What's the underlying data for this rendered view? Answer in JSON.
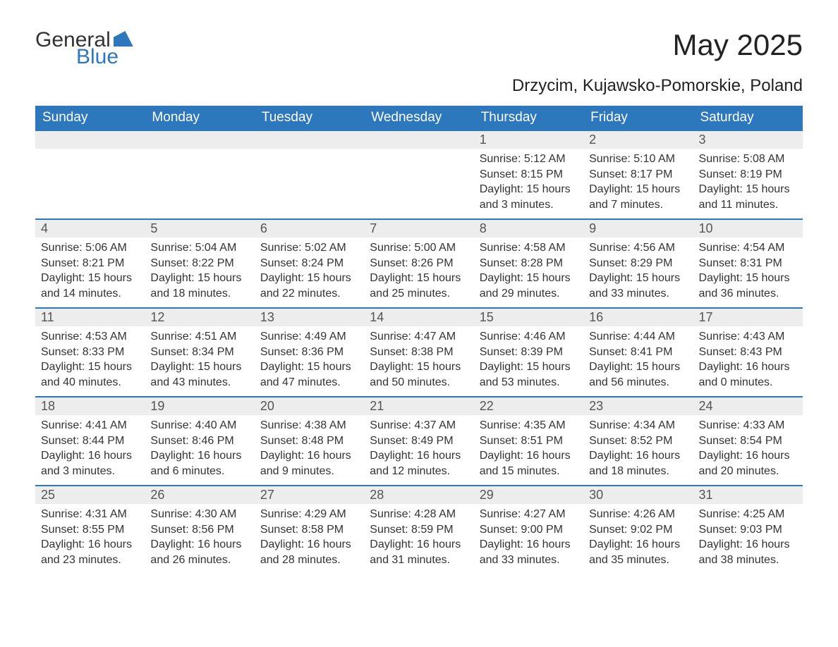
{
  "brand": {
    "general": "General",
    "blue": "Blue"
  },
  "title": "May 2025",
  "location": "Drzycim, Kujawsko-Pomorskie, Poland",
  "colors": {
    "accent": "#2d78bd",
    "header_text": "#ffffff",
    "daynum_bg": "#ededed",
    "text": "#333333",
    "background": "#ffffff"
  },
  "weekdays": [
    "Sunday",
    "Monday",
    "Tuesday",
    "Wednesday",
    "Thursday",
    "Friday",
    "Saturday"
  ],
  "weeks": [
    [
      null,
      null,
      null,
      null,
      {
        "n": "1",
        "sr": "Sunrise: 5:12 AM",
        "ss": "Sunset: 8:15 PM",
        "dl": "Daylight: 15 hours and 3 minutes."
      },
      {
        "n": "2",
        "sr": "Sunrise: 5:10 AM",
        "ss": "Sunset: 8:17 PM",
        "dl": "Daylight: 15 hours and 7 minutes."
      },
      {
        "n": "3",
        "sr": "Sunrise: 5:08 AM",
        "ss": "Sunset: 8:19 PM",
        "dl": "Daylight: 15 hours and 11 minutes."
      }
    ],
    [
      {
        "n": "4",
        "sr": "Sunrise: 5:06 AM",
        "ss": "Sunset: 8:21 PM",
        "dl": "Daylight: 15 hours and 14 minutes."
      },
      {
        "n": "5",
        "sr": "Sunrise: 5:04 AM",
        "ss": "Sunset: 8:22 PM",
        "dl": "Daylight: 15 hours and 18 minutes."
      },
      {
        "n": "6",
        "sr": "Sunrise: 5:02 AM",
        "ss": "Sunset: 8:24 PM",
        "dl": "Daylight: 15 hours and 22 minutes."
      },
      {
        "n": "7",
        "sr": "Sunrise: 5:00 AM",
        "ss": "Sunset: 8:26 PM",
        "dl": "Daylight: 15 hours and 25 minutes."
      },
      {
        "n": "8",
        "sr": "Sunrise: 4:58 AM",
        "ss": "Sunset: 8:28 PM",
        "dl": "Daylight: 15 hours and 29 minutes."
      },
      {
        "n": "9",
        "sr": "Sunrise: 4:56 AM",
        "ss": "Sunset: 8:29 PM",
        "dl": "Daylight: 15 hours and 33 minutes."
      },
      {
        "n": "10",
        "sr": "Sunrise: 4:54 AM",
        "ss": "Sunset: 8:31 PM",
        "dl": "Daylight: 15 hours and 36 minutes."
      }
    ],
    [
      {
        "n": "11",
        "sr": "Sunrise: 4:53 AM",
        "ss": "Sunset: 8:33 PM",
        "dl": "Daylight: 15 hours and 40 minutes."
      },
      {
        "n": "12",
        "sr": "Sunrise: 4:51 AM",
        "ss": "Sunset: 8:34 PM",
        "dl": "Daylight: 15 hours and 43 minutes."
      },
      {
        "n": "13",
        "sr": "Sunrise: 4:49 AM",
        "ss": "Sunset: 8:36 PM",
        "dl": "Daylight: 15 hours and 47 minutes."
      },
      {
        "n": "14",
        "sr": "Sunrise: 4:47 AM",
        "ss": "Sunset: 8:38 PM",
        "dl": "Daylight: 15 hours and 50 minutes."
      },
      {
        "n": "15",
        "sr": "Sunrise: 4:46 AM",
        "ss": "Sunset: 8:39 PM",
        "dl": "Daylight: 15 hours and 53 minutes."
      },
      {
        "n": "16",
        "sr": "Sunrise: 4:44 AM",
        "ss": "Sunset: 8:41 PM",
        "dl": "Daylight: 15 hours and 56 minutes."
      },
      {
        "n": "17",
        "sr": "Sunrise: 4:43 AM",
        "ss": "Sunset: 8:43 PM",
        "dl": "Daylight: 16 hours and 0 minutes."
      }
    ],
    [
      {
        "n": "18",
        "sr": "Sunrise: 4:41 AM",
        "ss": "Sunset: 8:44 PM",
        "dl": "Daylight: 16 hours and 3 minutes."
      },
      {
        "n": "19",
        "sr": "Sunrise: 4:40 AM",
        "ss": "Sunset: 8:46 PM",
        "dl": "Daylight: 16 hours and 6 minutes."
      },
      {
        "n": "20",
        "sr": "Sunrise: 4:38 AM",
        "ss": "Sunset: 8:48 PM",
        "dl": "Daylight: 16 hours and 9 minutes."
      },
      {
        "n": "21",
        "sr": "Sunrise: 4:37 AM",
        "ss": "Sunset: 8:49 PM",
        "dl": "Daylight: 16 hours and 12 minutes."
      },
      {
        "n": "22",
        "sr": "Sunrise: 4:35 AM",
        "ss": "Sunset: 8:51 PM",
        "dl": "Daylight: 16 hours and 15 minutes."
      },
      {
        "n": "23",
        "sr": "Sunrise: 4:34 AM",
        "ss": "Sunset: 8:52 PM",
        "dl": "Daylight: 16 hours and 18 minutes."
      },
      {
        "n": "24",
        "sr": "Sunrise: 4:33 AM",
        "ss": "Sunset: 8:54 PM",
        "dl": "Daylight: 16 hours and 20 minutes."
      }
    ],
    [
      {
        "n": "25",
        "sr": "Sunrise: 4:31 AM",
        "ss": "Sunset: 8:55 PM",
        "dl": "Daylight: 16 hours and 23 minutes."
      },
      {
        "n": "26",
        "sr": "Sunrise: 4:30 AM",
        "ss": "Sunset: 8:56 PM",
        "dl": "Daylight: 16 hours and 26 minutes."
      },
      {
        "n": "27",
        "sr": "Sunrise: 4:29 AM",
        "ss": "Sunset: 8:58 PM",
        "dl": "Daylight: 16 hours and 28 minutes."
      },
      {
        "n": "28",
        "sr": "Sunrise: 4:28 AM",
        "ss": "Sunset: 8:59 PM",
        "dl": "Daylight: 16 hours and 31 minutes."
      },
      {
        "n": "29",
        "sr": "Sunrise: 4:27 AM",
        "ss": "Sunset: 9:00 PM",
        "dl": "Daylight: 16 hours and 33 minutes."
      },
      {
        "n": "30",
        "sr": "Sunrise: 4:26 AM",
        "ss": "Sunset: 9:02 PM",
        "dl": "Daylight: 16 hours and 35 minutes."
      },
      {
        "n": "31",
        "sr": "Sunrise: 4:25 AM",
        "ss": "Sunset: 9:03 PM",
        "dl": "Daylight: 16 hours and 38 minutes."
      }
    ]
  ]
}
